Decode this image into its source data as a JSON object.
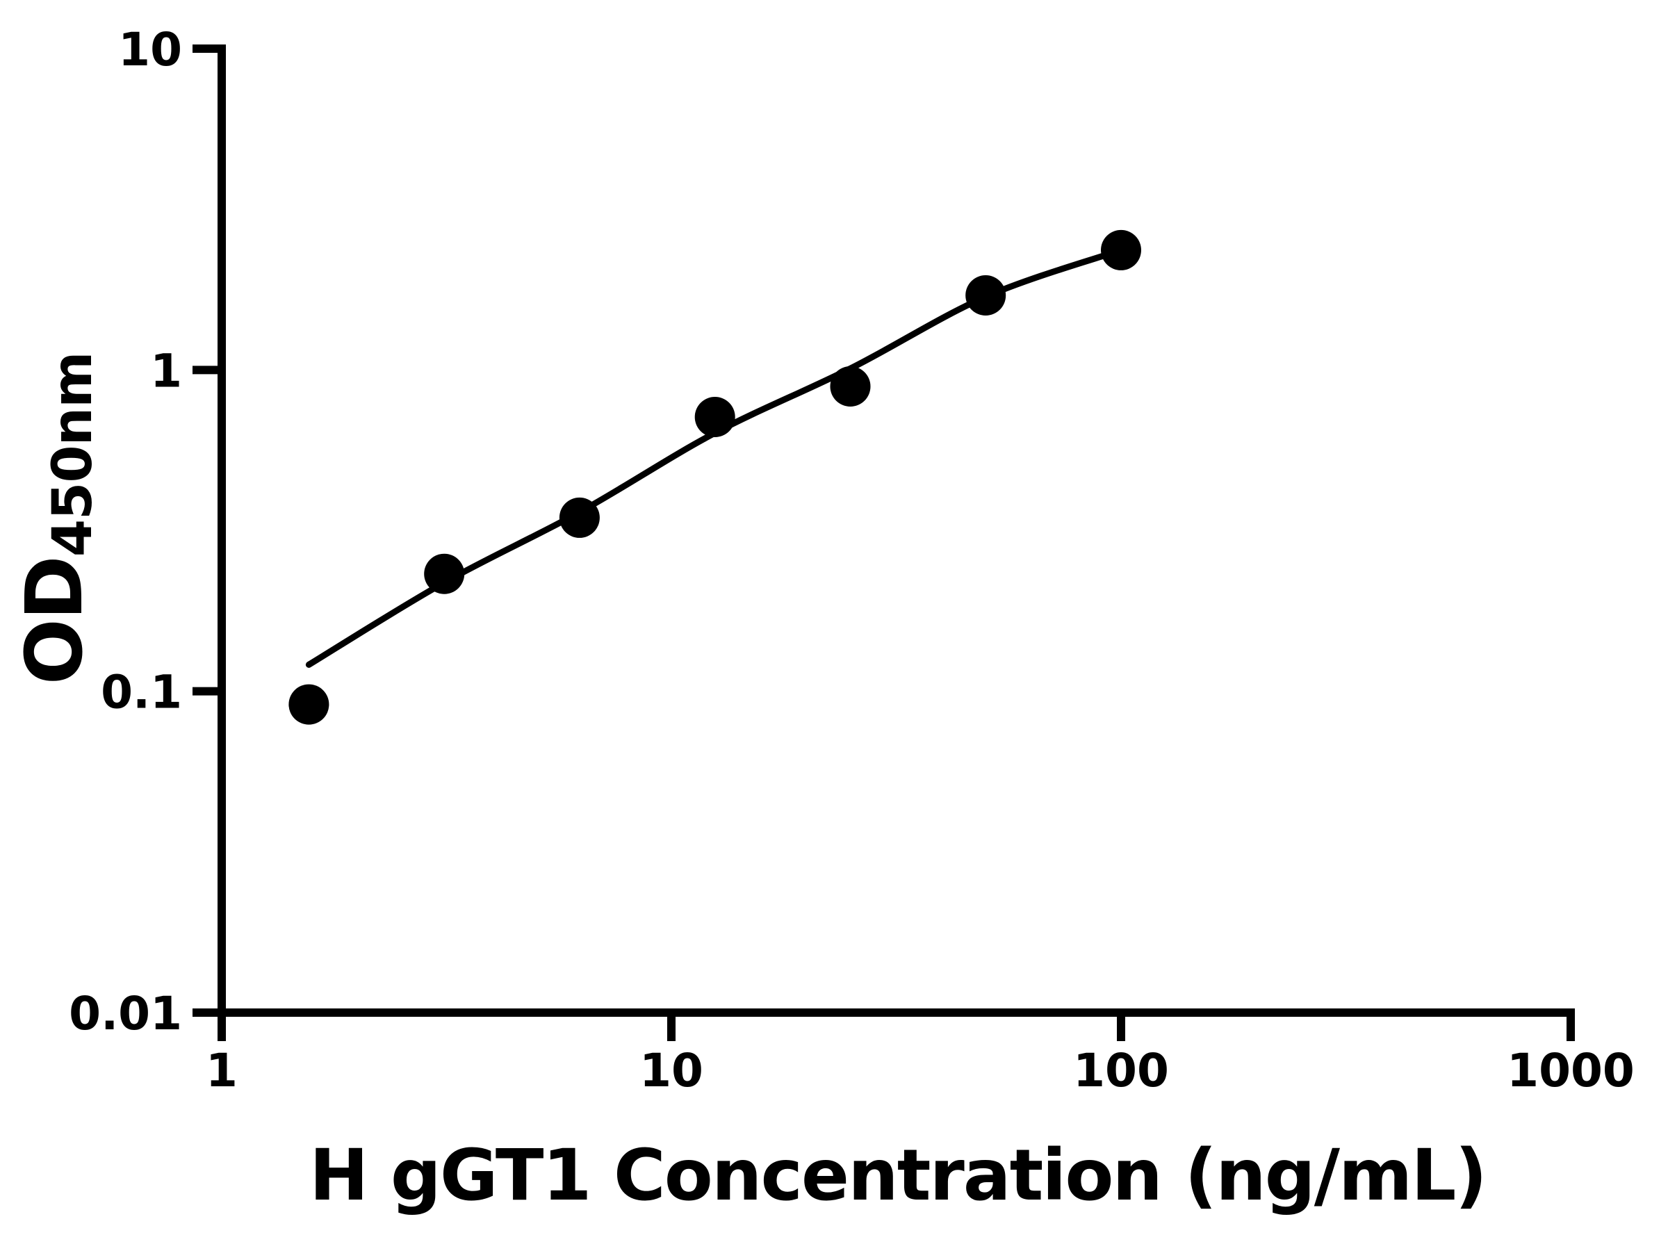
{
  "figure": {
    "background": "#ffffff"
  },
  "chart_data": {
    "type": "scatter",
    "title": "",
    "xlabel": "H gGT1 Concentration (ng/mL)",
    "ylabel_main": "OD",
    "ylabel_sub": "450nm",
    "x_scale": "log",
    "y_scale": "log",
    "xlim": [
      1,
      1000
    ],
    "ylim": [
      0.01,
      10
    ],
    "grid": false,
    "legend": "none",
    "x_ticks": [
      {
        "value": 1,
        "label": "1"
      },
      {
        "value": 10,
        "label": "10"
      },
      {
        "value": 100,
        "label": "100"
      },
      {
        "value": 1000,
        "label": "1000"
      }
    ],
    "y_ticks": [
      {
        "value": 0.01,
        "label": "0.01"
      },
      {
        "value": 0.1,
        "label": "0.1"
      },
      {
        "value": 1,
        "label": "1"
      },
      {
        "value": 10,
        "label": "10"
      }
    ],
    "series": [
      {
        "name": "standard-points",
        "type": "scatter",
        "x": [
          1.5625,
          3.125,
          6.25,
          12.5,
          25,
          50,
          100
        ],
        "y": [
          0.091,
          0.232,
          0.347,
          0.714,
          0.889,
          1.707,
          2.36
        ]
      },
      {
        "name": "fit-curve",
        "type": "line",
        "x": [
          1.5625,
          3.125,
          6.25,
          12.5,
          25,
          50,
          100
        ],
        "y": [
          0.121,
          0.218,
          0.361,
          0.637,
          1.01,
          1.69,
          2.36
        ]
      }
    ],
    "colors": {
      "points": "#000000",
      "curve": "#000000",
      "axis": "#000000",
      "text": "#000000"
    }
  }
}
